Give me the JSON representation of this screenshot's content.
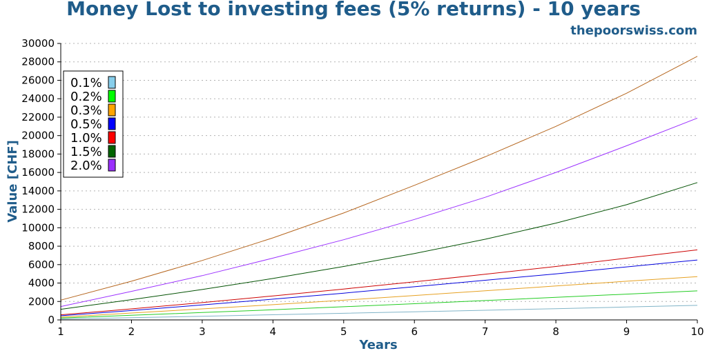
{
  "header": {
    "title": "Money Lost to investing fees (5% returns) - 10 years",
    "site": "thepoorswiss.com"
  },
  "chart_data": {
    "type": "line",
    "title": "Money Lost to investing fees (5% returns) - 10 years",
    "xlabel": "Years",
    "ylabel": "Value [CHF]",
    "xlim": [
      1,
      10
    ],
    "ylim": [
      0,
      30000
    ],
    "grid": "horizontal dotted",
    "legend_position": "top-left",
    "x": [
      1,
      2,
      3,
      4,
      5,
      6,
      7,
      8,
      9,
      10
    ],
    "x_ticks": [
      "1",
      "2",
      "3",
      "4",
      "5",
      "6",
      "7",
      "8",
      "9",
      "10"
    ],
    "y_ticks": [
      "0",
      "2000",
      "4000",
      "6000",
      "8000",
      "10000",
      "12000",
      "14000",
      "16000",
      "18000",
      "20000",
      "22000",
      "24000",
      "26000",
      "28000",
      "30000"
    ],
    "series": [
      {
        "name": "0.1%",
        "color": "#87ceeb",
        "line_color": "#7fb3c7",
        "values": [
          100,
          250,
          400,
          560,
          720,
          880,
          1050,
          1220,
          1400,
          1580
        ]
      },
      {
        "name": "0.2%",
        "color": "#00ff00",
        "line_color": "#22cc22",
        "values": [
          200,
          500,
          800,
          1100,
          1430,
          1760,
          2100,
          2450,
          2800,
          3150
        ]
      },
      {
        "name": "0.3%",
        "color": "#ffa500",
        "line_color": "#e6a020",
        "values": [
          300,
          750,
          1200,
          1650,
          2140,
          2650,
          3160,
          3680,
          4200,
          4700
        ]
      },
      {
        "name": "0.5%",
        "color": "#0000ff",
        "line_color": "#0000dd",
        "values": [
          450,
          1020,
          1620,
          2250,
          2900,
          3600,
          4300,
          5000,
          5750,
          6500
        ]
      },
      {
        "name": "1.0%",
        "color": "#ff0000",
        "line_color": "#cc0000",
        "values": [
          550,
          1200,
          1880,
          2600,
          3350,
          4130,
          4950,
          5800,
          6700,
          7600
        ]
      },
      {
        "name": "1.5%",
        "color": "#006400",
        "line_color": "#005000",
        "values": [
          1150,
          2200,
          3300,
          4500,
          5800,
          7200,
          8750,
          10500,
          12500,
          14900
        ]
      },
      {
        "name": "2.0%",
        "color": "#9b30ff",
        "line_color": "#9b30ff",
        "values": [
          1450,
          3100,
          4800,
          6700,
          8700,
          10900,
          13300,
          16000,
          18900,
          21900
        ]
      },
      {
        "name": "",
        "color": "#b5651d",
        "line_color": "#b5651d",
        "values": [
          2150,
          4200,
          6450,
          8900,
          11600,
          14600,
          17700,
          21000,
          24600,
          28600
        ]
      }
    ]
  }
}
